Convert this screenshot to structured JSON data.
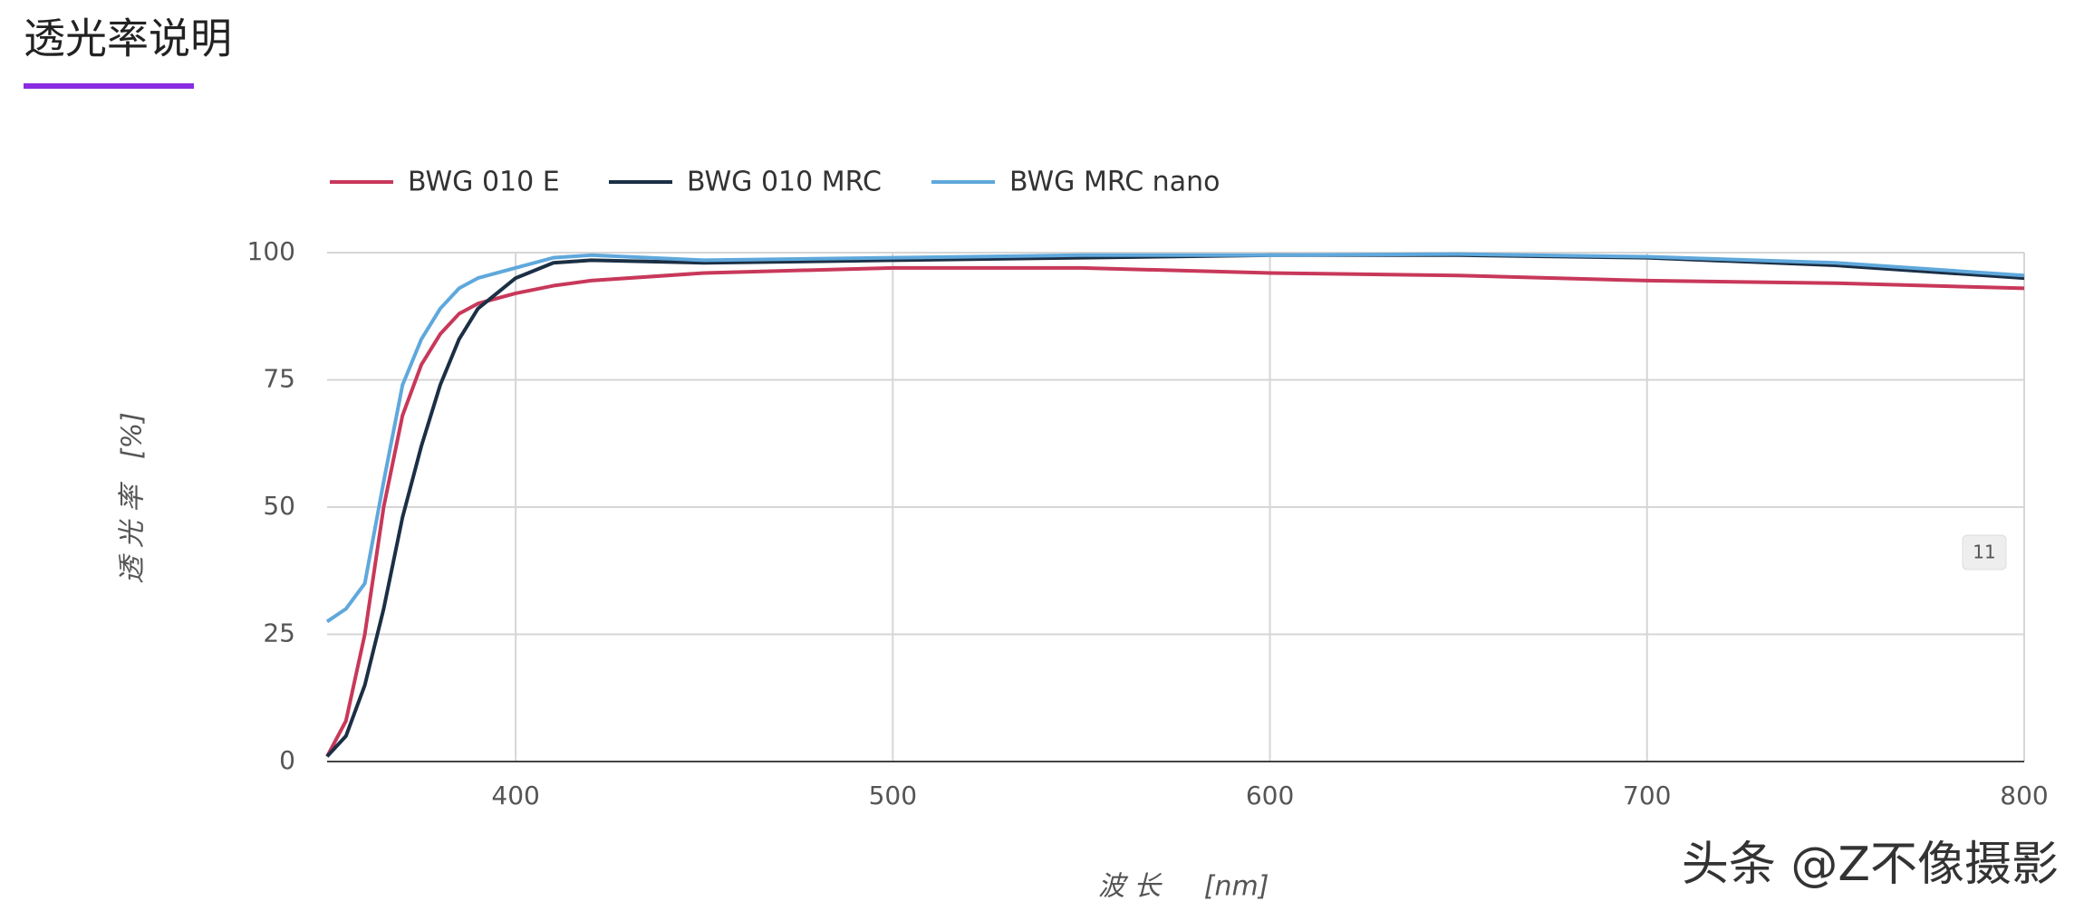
{
  "chart_data": {
    "type": "line",
    "title": "透光率说明",
    "x_label": "波 长     [nm]",
    "y_label": "透 光 率   [%]",
    "x": [
      350,
      355,
      360,
      365,
      370,
      375,
      380,
      385,
      390,
      400,
      410,
      420,
      450,
      500,
      550,
      600,
      650,
      700,
      750,
      800
    ],
    "series": [
      {
        "name": "BWG 010 E",
        "color": "#c8385a",
        "values": [
          1,
          8,
          25,
          50,
          68,
          78,
          84,
          88,
          90,
          92,
          93.5,
          94.5,
          96,
          97,
          97,
          96,
          95.5,
          94.5,
          94,
          93
        ]
      },
      {
        "name": "BWG 010 MRC",
        "color": "#1b2f45",
        "values": [
          1,
          5,
          15,
          30,
          48,
          62,
          74,
          83,
          89,
          95,
          98,
          98.5,
          98,
          98.5,
          99,
          99.5,
          99.5,
          99,
          97.5,
          95
        ]
      },
      {
        "name": "BWG MRC nano",
        "color": "#5fa8dc",
        "values": [
          27.5,
          30,
          35,
          55,
          74,
          83,
          89,
          93,
          95,
          97,
          99,
          99.5,
          98.5,
          99,
          99.5,
          99.5,
          99.7,
          99.2,
          98,
          95.5
        ]
      }
    ],
    "xlim": [
      350,
      800
    ],
    "xticks": [
      400,
      500,
      600,
      700,
      800
    ],
    "ylim": [
      0,
      100
    ],
    "yticks": [
      0,
      25,
      50,
      75,
      100
    ],
    "grid": true,
    "legend": "top"
  },
  "badge": "11",
  "watermark": "头条 @Z不像摄影"
}
